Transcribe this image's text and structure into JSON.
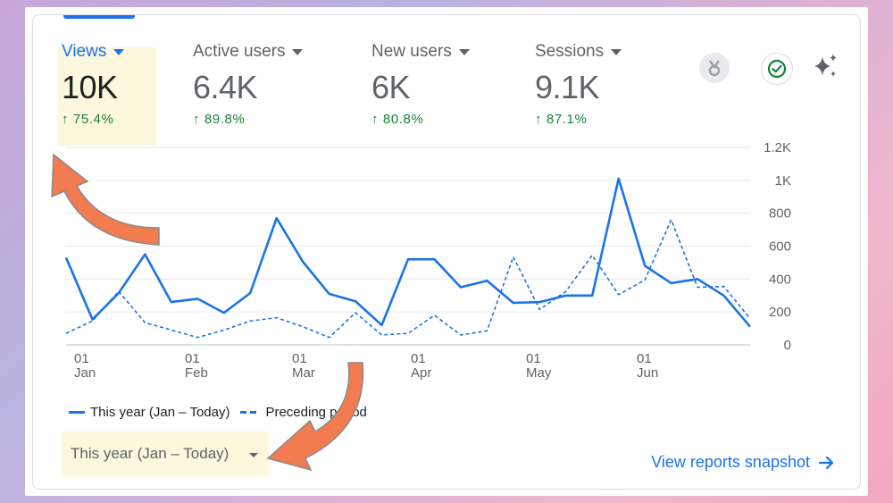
{
  "metrics": [
    {
      "label": "Views",
      "value": "10K",
      "change": "75.4%",
      "active": true
    },
    {
      "label": "Active users",
      "value": "6.4K",
      "change": "89.8%",
      "active": false
    },
    {
      "label": "New users",
      "value": "6K",
      "change": "80.8%",
      "active": false
    },
    {
      "label": "Sessions",
      "value": "9.1K",
      "change": "87.1%",
      "active": false
    }
  ],
  "icons": [
    "insights-badge-icon",
    "check-circle-icon",
    "sparkle-icon"
  ],
  "chart_data": {
    "type": "line",
    "ylim": [
      0,
      1200
    ],
    "yticks": [
      "0",
      "200",
      "400",
      "600",
      "800",
      "1K",
      "1.2K"
    ],
    "xticks": [
      {
        "day": "01",
        "month": "Jan"
      },
      {
        "day": "01",
        "month": "Feb"
      },
      {
        "day": "01",
        "month": "Mar"
      },
      {
        "day": "01",
        "month": "Apr"
      },
      {
        "day": "01",
        "month": "May"
      },
      {
        "day": "01",
        "month": "Jun"
      }
    ],
    "series": [
      {
        "name": "This year (Jan – Today)",
        "style": "solid",
        "values": [
          530,
          155,
          315,
          550,
          260,
          280,
          195,
          315,
          770,
          505,
          310,
          265,
          120,
          520,
          520,
          350,
          390,
          255,
          260,
          300,
          300,
          1010,
          480,
          375,
          400,
          300,
          110
        ]
      },
      {
        "name": "Preceding period",
        "style": "dashed",
        "values": [
          70,
          145,
          325,
          135,
          90,
          45,
          90,
          145,
          165,
          110,
          45,
          195,
          60,
          70,
          180,
          60,
          85,
          535,
          215,
          325,
          545,
          305,
          395,
          760,
          350,
          355,
          160
        ]
      }
    ]
  },
  "legend": {
    "this_year": "This year (Jan – Today)",
    "preceding": "Preceding period"
  },
  "range": {
    "label": "This year (Jan – Today)"
  },
  "snapshot": {
    "label": "View reports snapshot"
  },
  "colors": {
    "accent": "#1a73e8",
    "positive": "#188038",
    "highlight": "#fdf7dd",
    "arrow": "#f27b50"
  }
}
